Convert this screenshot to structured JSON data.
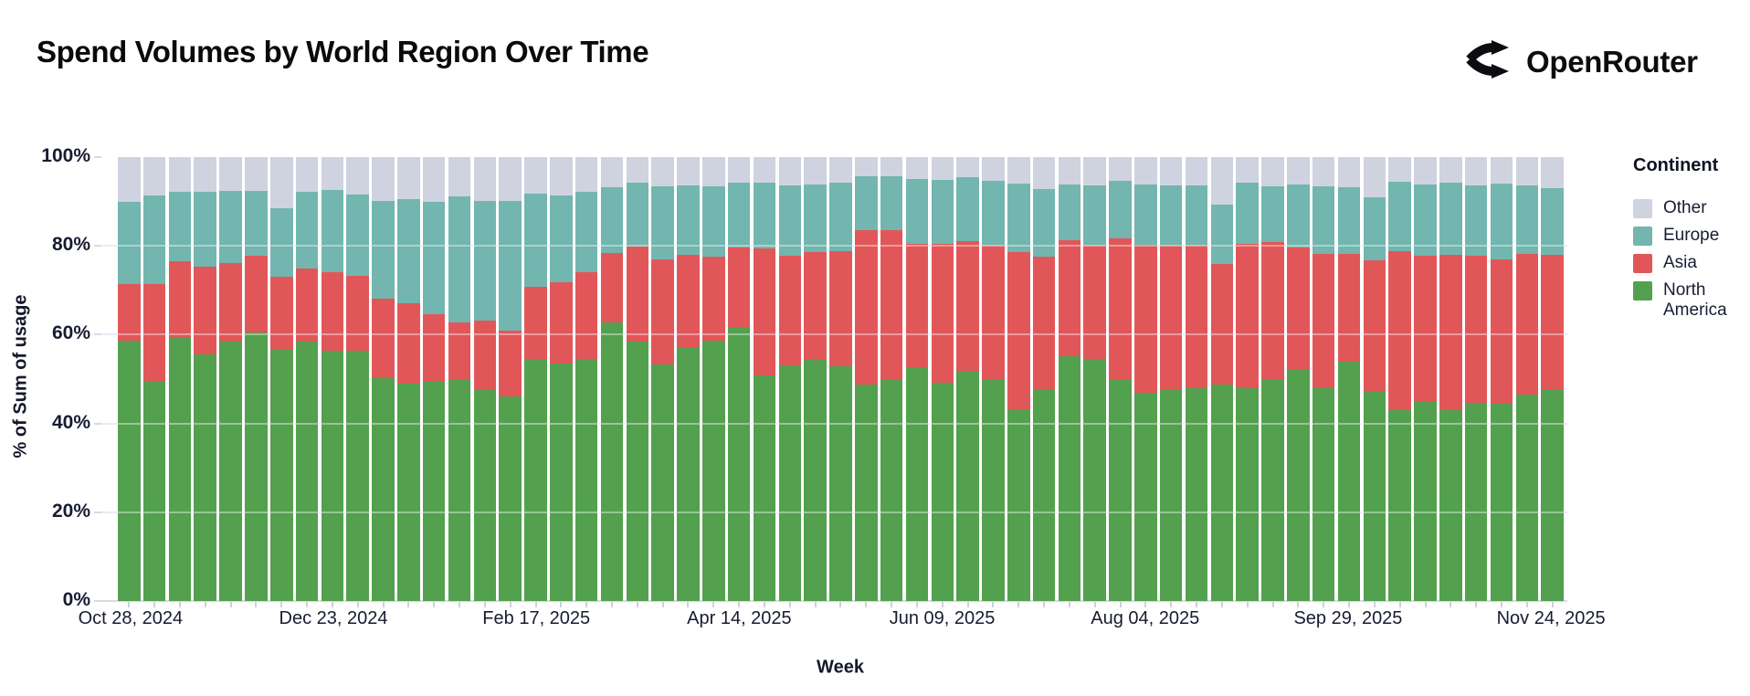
{
  "header": {
    "title": "Spend Volumes by World Region Over Time",
    "brand": {
      "name": "OpenRouter",
      "icon": "openrouter-fork-icon"
    }
  },
  "chart": {
    "y_axis": {
      "title": "% of Sum of usage",
      "ticks": [
        0,
        20,
        40,
        60,
        80,
        100
      ],
      "tick_labels": [
        "0%",
        "20%",
        "40%",
        "60%",
        "80%",
        "100%"
      ]
    },
    "x_axis": {
      "title": "Week",
      "tick_labels": [
        "Oct 28, 2024",
        "Dec 23, 2024",
        "Feb 17, 2025",
        "Apr 14, 2025",
        "Jun 09, 2025",
        "Aug 04, 2025",
        "Sep 29, 2025",
        "Nov 24, 2025"
      ],
      "tick_label_indices": [
        0,
        8,
        16,
        24,
        32,
        40,
        48,
        56
      ]
    },
    "legend": {
      "title": "Continent",
      "items": [
        {
          "label": "Other",
          "color": "#cfd3e0"
        },
        {
          "label": "Europe",
          "color": "#72b6af"
        },
        {
          "label": "Asia",
          "color": "#e15759"
        },
        {
          "label": "North America",
          "color": "#53a04e"
        }
      ]
    },
    "colors": {
      "background": "#ffffff",
      "axis_text": "#171c30",
      "gridline": "#e9ecf3",
      "axis_line": "#d6dae3"
    }
  },
  "chart_data": {
    "type": "bar",
    "stacked": true,
    "normalized_percent": true,
    "title": "Spend Volumes by World Region Over Time",
    "xlabel": "Week",
    "ylabel": "% of Sum of usage",
    "ylim": [
      0,
      100
    ],
    "grid": true,
    "legend_position": "right",
    "categories": [
      "Oct 28, 2024",
      "Nov 04, 2024",
      "Nov 11, 2024",
      "Nov 18, 2024",
      "Nov 25, 2024",
      "Dec 02, 2024",
      "Dec 09, 2024",
      "Dec 16, 2024",
      "Dec 23, 2024",
      "Dec 30, 2024",
      "Jan 06, 2025",
      "Jan 13, 2025",
      "Jan 20, 2025",
      "Jan 27, 2025",
      "Feb 03, 2025",
      "Feb 10, 2025",
      "Feb 17, 2025",
      "Feb 24, 2025",
      "Mar 03, 2025",
      "Mar 10, 2025",
      "Mar 17, 2025",
      "Mar 24, 2025",
      "Mar 31, 2025",
      "Apr 07, 2025",
      "Apr 14, 2025",
      "Apr 21, 2025",
      "Apr 28, 2025",
      "May 05, 2025",
      "May 12, 2025",
      "May 19, 2025",
      "May 26, 2025",
      "Jun 02, 2025",
      "Jun 09, 2025",
      "Jun 16, 2025",
      "Jun 23, 2025",
      "Jun 30, 2025",
      "Jul 07, 2025",
      "Jul 14, 2025",
      "Jul 21, 2025",
      "Jul 28, 2025",
      "Aug 04, 2025",
      "Aug 11, 2025",
      "Aug 18, 2025",
      "Aug 25, 2025",
      "Sep 01, 2025",
      "Sep 08, 2025",
      "Sep 15, 2025",
      "Sep 22, 2025",
      "Sep 29, 2025",
      "Oct 06, 2025",
      "Oct 13, 2025",
      "Oct 20, 2025",
      "Oct 27, 2025",
      "Nov 03, 2025",
      "Nov 10, 2025",
      "Nov 17, 2025",
      "Nov 24, 2025"
    ],
    "series": [
      {
        "name": "North America",
        "color": "#53a04e",
        "values": [
          58.7,
          49.4,
          59.4,
          55.6,
          58.5,
          60.5,
          56.6,
          58.5,
          56.4,
          56.4,
          50.2,
          48.9,
          49.4,
          49.9,
          47.6,
          46.0,
          54.6,
          53.5,
          54.6,
          62.8,
          58.5,
          53.2,
          57.0,
          58.7,
          61.6,
          50.9,
          53.0,
          54.4,
          52.8,
          48.7,
          50.0,
          52.7,
          49.1,
          51.8,
          49.8,
          43.2,
          47.7,
          55.2,
          54.6,
          49.8,
          47.0,
          47.8,
          47.9,
          48.7,
          48.0,
          49.8,
          52.0,
          47.9,
          53.9,
          47.4,
          43.1,
          44.8,
          43.1,
          44.6,
          44.5,
          46.5,
          47.8
        ]
      },
      {
        "name": "Asia",
        "color": "#e15759",
        "values": [
          12.8,
          22.0,
          17.1,
          19.8,
          17.7,
          17.3,
          16.4,
          16.4,
          17.7,
          16.8,
          17.9,
          18.2,
          15.2,
          12.9,
          15.5,
          14.9,
          16.2,
          18.3,
          19.4,
          15.6,
          21.3,
          23.8,
          20.9,
          18.9,
          18.0,
          28.5,
          24.8,
          24.2,
          26.0,
          34.9,
          33.6,
          27.7,
          31.3,
          29.3,
          30.2,
          35.4,
          29.9,
          26.1,
          25.5,
          31.9,
          33.3,
          32.3,
          32.1,
          27.3,
          32.4,
          31.0,
          27.6,
          30.3,
          24.2,
          29.3,
          35.8,
          32.9,
          34.8,
          33.1,
          32.5,
          31.6,
          30.1
        ]
      },
      {
        "name": "Europe",
        "color": "#72b6af",
        "values": [
          18.5,
          20.0,
          15.6,
          16.7,
          16.2,
          14.6,
          15.5,
          17.2,
          18.4,
          18.4,
          22.1,
          23.5,
          25.4,
          28.3,
          27.1,
          29.2,
          20.9,
          19.5,
          18.1,
          14.9,
          14.4,
          16.5,
          15.8,
          15.9,
          14.6,
          14.8,
          15.9,
          15.3,
          15.5,
          12.1,
          12.1,
          14.6,
          14.5,
          14.3,
          14.7,
          15.4,
          15.2,
          12.5,
          13.6,
          13.0,
          13.6,
          13.6,
          13.7,
          13.4,
          13.8,
          12.7,
          14.3,
          15.3,
          15.1,
          14.2,
          15.5,
          16.1,
          16.3,
          16.0,
          17.0,
          15.6,
          15.1
        ]
      },
      {
        "name": "Other",
        "color": "#cfd3e0",
        "values": [
          10.0,
          8.6,
          7.9,
          7.9,
          7.6,
          7.6,
          11.5,
          7.9,
          7.5,
          8.4,
          9.8,
          9.4,
          10.0,
          8.9,
          9.8,
          9.9,
          8.3,
          8.7,
          7.9,
          6.7,
          5.8,
          6.5,
          6.3,
          6.5,
          5.8,
          5.8,
          6.3,
          6.1,
          5.7,
          4.3,
          4.3,
          5.0,
          5.1,
          4.6,
          5.3,
          6.0,
          7.2,
          6.2,
          6.3,
          5.3,
          6.1,
          6.3,
          6.3,
          10.6,
          5.8,
          6.5,
          6.1,
          6.5,
          6.8,
          9.1,
          5.6,
          6.2,
          5.8,
          6.3,
          6.0,
          6.3,
          7.0
        ]
      }
    ]
  }
}
